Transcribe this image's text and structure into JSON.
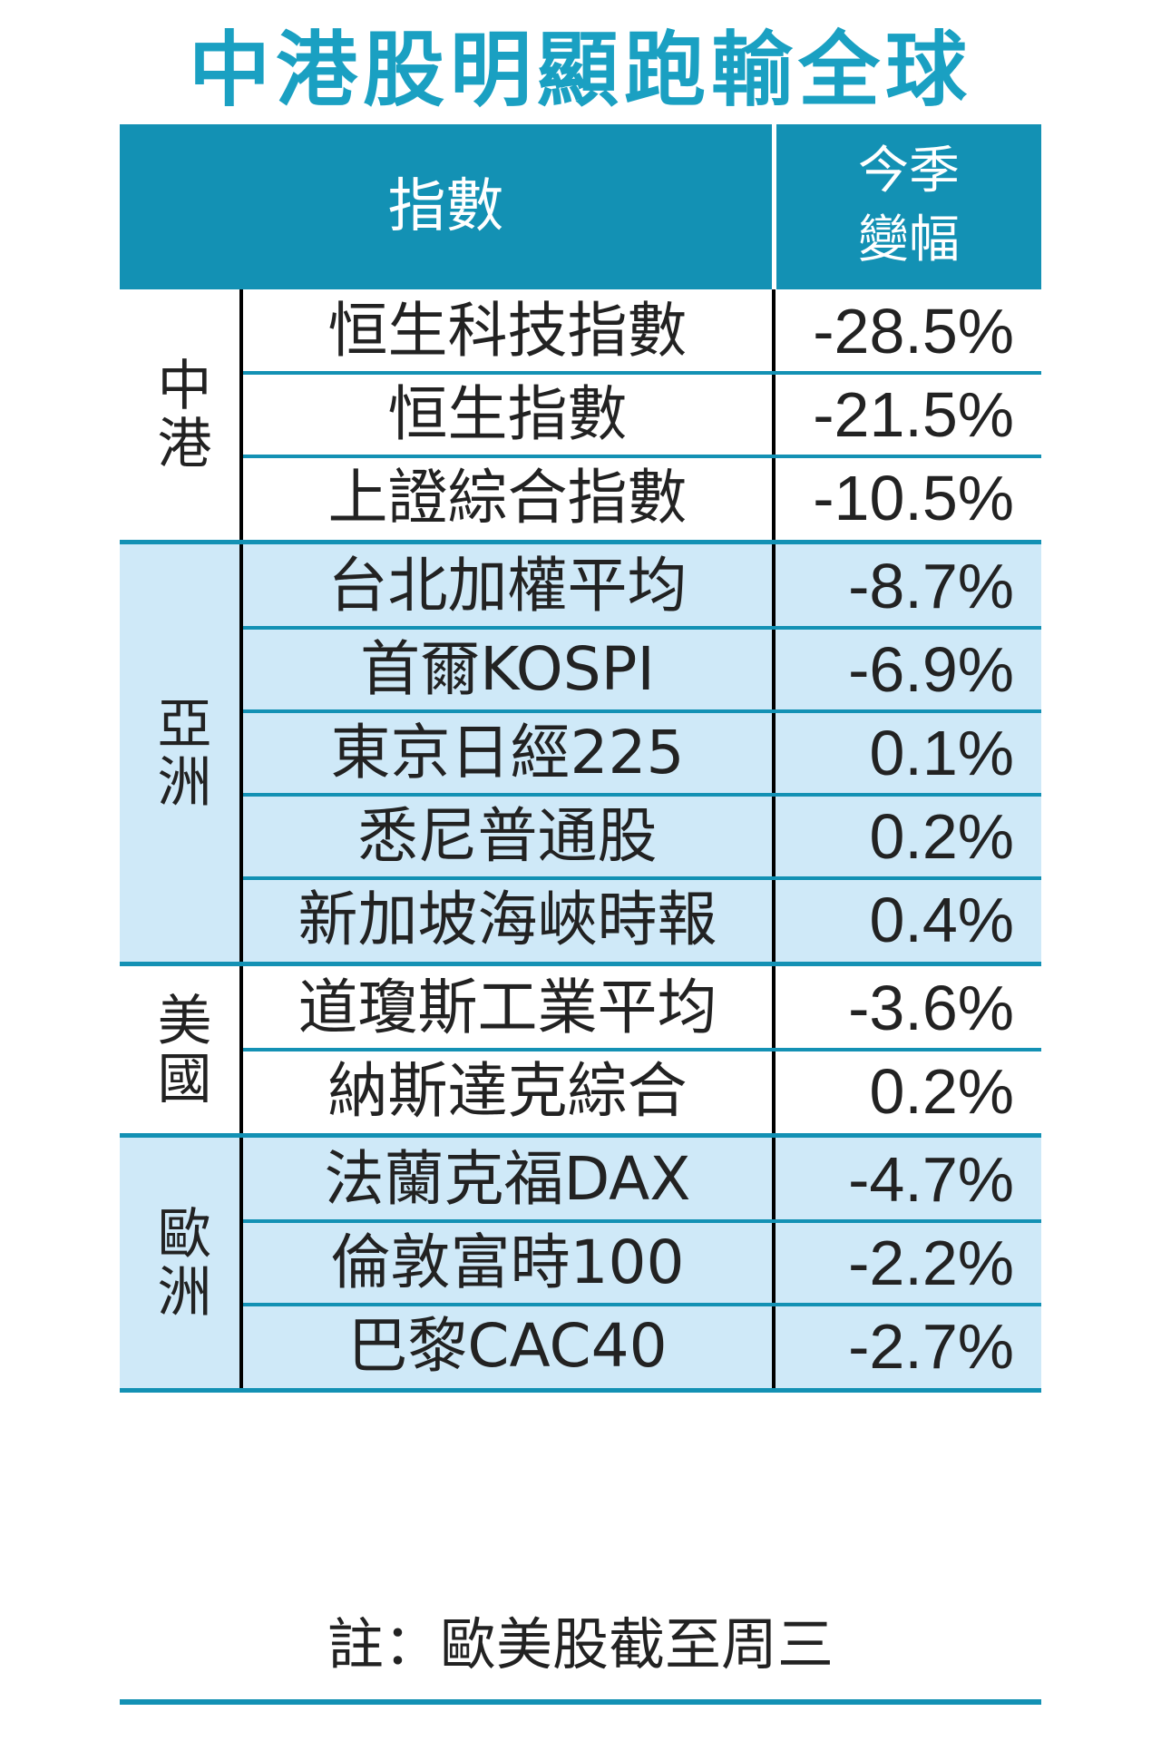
{
  "title": "中港股明顯跑輸全球",
  "header": {
    "index": "指數",
    "change_line1": "今季",
    "change_line2": "變幅"
  },
  "colors": {
    "accent": "#1391b4",
    "title": "#1aa0c2",
    "shade": "#cfe9f8"
  },
  "groups": [
    {
      "region": "中港",
      "shaded": false,
      "rows": [
        {
          "name": "恒生科技指數",
          "value": "-28.5%"
        },
        {
          "name": "恒生指數",
          "value": "-21.5%"
        },
        {
          "name": "上證綜合指數",
          "value": "-10.5%"
        }
      ]
    },
    {
      "region": "亞洲",
      "shaded": true,
      "rows": [
        {
          "name": "台北加權平均",
          "value": "-8.7%"
        },
        {
          "name": "首爾KOSPI",
          "value": "-6.9%"
        },
        {
          "name": "東京日經225",
          "value": "0.1%"
        },
        {
          "name": "悉尼普通股",
          "value": "0.2%"
        },
        {
          "name": "新加坡海峽時報",
          "value": "0.4%"
        }
      ]
    },
    {
      "region": "美國",
      "shaded": false,
      "rows": [
        {
          "name": "道瓊斯工業平均",
          "value": "-3.6%"
        },
        {
          "name": "納斯達克綜合",
          "value": "0.2%"
        }
      ]
    },
    {
      "region": "歐洲",
      "shaded": true,
      "rows": [
        {
          "name": "法蘭克福DAX",
          "value": "-4.7%"
        },
        {
          "name": "倫敦富時100",
          "value": "-2.2%"
        },
        {
          "name": "巴黎CAC40",
          "value": "-2.7%"
        }
      ]
    }
  ],
  "note": "註：歐美股截至周三",
  "chart_data": {
    "type": "table",
    "title": "中港股明顯跑輸全球",
    "columns": [
      "指數",
      "今季變幅"
    ],
    "categories": [
      "恒生科技指數",
      "恒生指數",
      "上證綜合指數",
      "台北加權平均",
      "首爾KOSPI",
      "東京日經225",
      "悉尼普通股",
      "新加坡海峽時報",
      "道瓊斯工業平均",
      "納斯達克綜合",
      "法蘭克福DAX",
      "倫敦富時100",
      "巴黎CAC40"
    ],
    "values": [
      -28.5,
      -21.5,
      -10.5,
      -8.7,
      -6.9,
      0.1,
      0.2,
      0.4,
      -3.6,
      0.2,
      -4.7,
      -2.2,
      -2.7
    ],
    "groups": [
      "中港",
      "中港",
      "中港",
      "亞洲",
      "亞洲",
      "亞洲",
      "亞洲",
      "亞洲",
      "美國",
      "美國",
      "歐洲",
      "歐洲",
      "歐洲"
    ]
  }
}
